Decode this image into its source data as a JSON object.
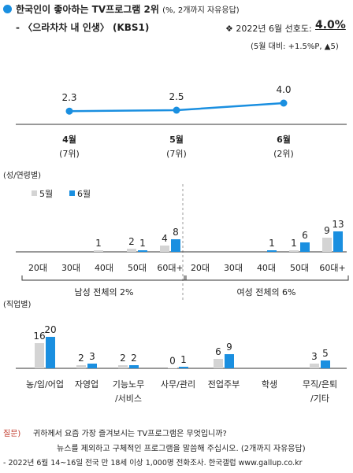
{
  "header": {
    "title": "한국인이 좋아하는 TV프로그램 2위",
    "title_note": "(%, 2개까지 자유응답)",
    "program": "- 〈으라차차 내 인생〉 (KBS1)",
    "pref_label": "❖ 2022년 6월 선호도:",
    "pref_value": "4.0%",
    "change": "(5월 대비: +1.5%P, ▲5)"
  },
  "colors": {
    "blue": "#1a8fe0",
    "gray": "#d4d4d4",
    "red": "#c0392b"
  },
  "chart_data": [
    {
      "type": "line",
      "categories": [
        "4월",
        "5월",
        "6월"
      ],
      "ranks": [
        "(7위)",
        "(7위)",
        "(2위)"
      ],
      "values": [
        2.3,
        2.5,
        4.0
      ],
      "labels": [
        "2.3",
        "2.5",
        "4.0"
      ]
    },
    {
      "type": "bar",
      "section_label": "(성/연령별)",
      "legend": [
        "5월",
        "6월"
      ],
      "categories": [
        "20대",
        "30대",
        "40대",
        "50대",
        "60대+",
        "20대",
        "30대",
        "40대",
        "50대",
        "60대+"
      ],
      "groups": [
        {
          "label": "남성 전체의 2%",
          "from": 0,
          "to": 4
        },
        {
          "label": "여성 전체의 6%",
          "from": 5,
          "to": 9
        }
      ],
      "series": [
        {
          "name": "5월",
          "values": [
            null,
            null,
            1,
            2,
            4,
            null,
            null,
            null,
            1,
            9
          ]
        },
        {
          "name": "6월",
          "values": [
            null,
            null,
            null,
            1,
            8,
            null,
            null,
            1,
            6,
            13
          ]
        }
      ]
    },
    {
      "type": "bar",
      "section_label": "(직업별)",
      "categories": [
        "농/임/어업",
        "자영업",
        "기능노무\n/서비스",
        "사무/관리",
        "전업주부",
        "학생",
        "무직/은퇴\n/기타"
      ],
      "series": [
        {
          "name": "5월",
          "values": [
            16,
            2,
            2,
            0,
            6,
            null,
            3
          ]
        },
        {
          "name": "6월",
          "values": [
            20,
            3,
            2,
            1,
            9,
            null,
            5
          ]
        }
      ]
    }
  ],
  "footer": {
    "question_label": "질문)",
    "question": "귀하께서 요즘 가장 즐겨보시는 TV프로그램은 무엇입니까?",
    "question2": "뉴스를 제외하고 구체적인 프로그램을 말씀해 주십시오. (2개까지 자유응답)",
    "source": "- 2022년 6월 14~16일 전국 만 18세 이상 1,000명 전화조사. 한국갤럽 www.gallup.co.kr"
  }
}
